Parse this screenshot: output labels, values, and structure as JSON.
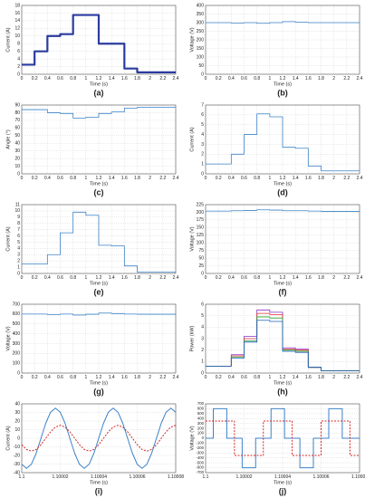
{
  "chart_data": [
    {
      "type": "line",
      "caption": "(a)",
      "xlabel": "Time (s)",
      "ylabel": "Current (A)",
      "grid": true,
      "xlim": [
        0,
        2.4
      ],
      "xticks": [
        0,
        0.2,
        0.4,
        0.6,
        0.8,
        1,
        1.2,
        1.4,
        1.6,
        1.8,
        2,
        2.2,
        2.4
      ],
      "ylim": [
        0,
        18
      ],
      "yticks": [
        0,
        2,
        4,
        6,
        8,
        10,
        12,
        14,
        16,
        18
      ],
      "x": [
        0,
        0.2,
        0.2,
        0.4,
        0.4,
        0.6,
        0.6,
        0.8,
        0.8,
        1,
        1,
        1.2,
        1.2,
        1.4,
        1.4,
        1.6,
        1.6,
        1.8,
        1.8,
        2.4
      ],
      "series": [
        {
          "color": "#2b3b9e",
          "width": 2.2,
          "values": [
            2.5,
            2.5,
            6,
            6,
            10,
            10,
            10.5,
            10.5,
            15.5,
            15.5,
            15.5,
            15.5,
            8,
            8,
            8,
            8,
            1.5,
            1.5,
            0.5,
            0.5
          ]
        }
      ]
    },
    {
      "type": "line",
      "caption": "(b)",
      "xlabel": "Time (s)",
      "ylabel": "Voltage (V)",
      "grid": true,
      "xlim": [
        0,
        2.4
      ],
      "xticks": [
        0,
        0.2,
        0.4,
        0.6,
        0.8,
        1,
        1.2,
        1.4,
        1.6,
        1.8,
        2,
        2.2,
        2.4
      ],
      "ylim": [
        0,
        400
      ],
      "yticks": [
        0,
        50,
        100,
        150,
        200,
        250,
        300,
        350,
        400
      ],
      "x": [
        0,
        0.2,
        0.2,
        0.4,
        0.4,
        0.6,
        0.6,
        0.8,
        0.8,
        1,
        1,
        1.2,
        1.2,
        1.4,
        1.4,
        1.6,
        1.6,
        1.8,
        1.8,
        2.4
      ],
      "series": [
        {
          "color": "#3b82c8",
          "width": 0.8,
          "values": [
            300,
            300,
            300,
            300,
            298,
            298,
            300,
            300,
            296,
            296,
            300,
            300,
            306,
            306,
            302,
            302,
            300,
            300,
            300,
            300
          ]
        }
      ]
    },
    {
      "type": "line",
      "caption": "(c)",
      "xlabel": "Time (s)",
      "ylabel": "Angle (°)",
      "grid": true,
      "xlim": [
        0,
        2.4
      ],
      "xticks": [
        0,
        0.2,
        0.4,
        0.6,
        0.8,
        1,
        1.2,
        1.4,
        1.6,
        1.8,
        2,
        2.2,
        2.4
      ],
      "ylim": [
        0,
        90
      ],
      "yticks": [
        0,
        10,
        20,
        30,
        40,
        50,
        60,
        70,
        80,
        90
      ],
      "x": [
        0,
        0.2,
        0.2,
        0.4,
        0.4,
        0.6,
        0.6,
        0.8,
        0.8,
        1,
        1,
        1.2,
        1.2,
        1.4,
        1.4,
        1.6,
        1.6,
        1.8,
        1.8,
        2.4
      ],
      "series": [
        {
          "color": "#3b82c8",
          "width": 0.8,
          "values": [
            84,
            84,
            84,
            84,
            80,
            80,
            79,
            79,
            73,
            73,
            74,
            74,
            79,
            79,
            81,
            81,
            86,
            86,
            87,
            87
          ]
        }
      ]
    },
    {
      "type": "line",
      "caption": "(d)",
      "xlabel": "Time (s)",
      "ylabel": "Current (A)",
      "grid": true,
      "xlim": [
        0,
        2.4
      ],
      "xticks": [
        0,
        0.2,
        0.4,
        0.6,
        0.8,
        1,
        1.2,
        1.4,
        1.6,
        1.8,
        2,
        2.2,
        2.4
      ],
      "ylim": [
        0,
        7
      ],
      "yticks": [
        0,
        1,
        2,
        3,
        4,
        5,
        6,
        7
      ],
      "x": [
        0,
        0.2,
        0.2,
        0.4,
        0.4,
        0.6,
        0.6,
        0.8,
        0.8,
        1,
        1,
        1.2,
        1.2,
        1.4,
        1.4,
        1.6,
        1.6,
        1.8,
        1.8,
        2.4
      ],
      "series": [
        {
          "color": "#3b82c8",
          "width": 0.8,
          "values": [
            1,
            1,
            1,
            1,
            2,
            2,
            4,
            4,
            6.1,
            6.1,
            5.8,
            5.8,
            2.7,
            2.7,
            2.6,
            2.6,
            0.8,
            0.8,
            0.3,
            0.3
          ]
        }
      ]
    },
    {
      "type": "line",
      "caption": "(e)",
      "xlabel": "Time (s)",
      "ylabel": "Current (A)",
      "grid": true,
      "xlim": [
        0,
        2.4
      ],
      "xticks": [
        0,
        0.2,
        0.4,
        0.6,
        0.8,
        1,
        1.2,
        1.4,
        1.6,
        1.8,
        2,
        2.2,
        2.4
      ],
      "ylim": [
        0,
        11
      ],
      "yticks": [
        0,
        1,
        2,
        3,
        4,
        5,
        6,
        7,
        8,
        9,
        10,
        11
      ],
      "x": [
        0,
        0.2,
        0.2,
        0.4,
        0.4,
        0.6,
        0.6,
        0.8,
        0.8,
        1,
        1,
        1.2,
        1.2,
        1.4,
        1.4,
        1.6,
        1.6,
        1.8,
        1.8,
        2.4
      ],
      "series": [
        {
          "color": "#3b82c8",
          "width": 0.8,
          "values": [
            1.5,
            1.5,
            1.5,
            1.5,
            3,
            3,
            6.5,
            6.5,
            9.8,
            9.8,
            9.3,
            9.3,
            4.5,
            4.5,
            4.4,
            4.4,
            1.2,
            1.2,
            0.2,
            0.2
          ]
        }
      ]
    },
    {
      "type": "line",
      "caption": "(f)",
      "xlabel": "Time (s)",
      "ylabel": "Voltage (V)",
      "grid": true,
      "xlim": [
        0,
        2.4
      ],
      "xticks": [
        0,
        0.2,
        0.4,
        0.6,
        0.8,
        1,
        1.2,
        1.4,
        1.6,
        1.8,
        2,
        2.2,
        2.4
      ],
      "ylim": [
        0,
        225
      ],
      "yticks": [
        0,
        25,
        50,
        75,
        100,
        125,
        150,
        175,
        200,
        225
      ],
      "x": [
        0,
        0.2,
        0.2,
        0.4,
        0.4,
        0.6,
        0.6,
        0.8,
        0.8,
        1,
        1,
        1.2,
        1.2,
        1.4,
        1.4,
        1.6,
        1.6,
        1.8,
        1.8,
        2.4
      ],
      "series": [
        {
          "color": "#3b82c8",
          "width": 0.8,
          "values": [
            204,
            204,
            204,
            204,
            205,
            205,
            206,
            206,
            208,
            208,
            207,
            207,
            205,
            205,
            205,
            205,
            204,
            204,
            203,
            203
          ]
        }
      ]
    },
    {
      "type": "line",
      "caption": "(g)",
      "xlabel": "Time (s)",
      "ylabel": "Voltage (V)",
      "grid": true,
      "xlim": [
        0,
        2.4
      ],
      "xticks": [
        0,
        0.2,
        0.4,
        0.6,
        0.8,
        1,
        1.2,
        1.4,
        1.6,
        1.8,
        2,
        2.2,
        2.4
      ],
      "ylim": [
        0,
        700
      ],
      "yticks": [
        0,
        100,
        200,
        300,
        400,
        500,
        600,
        700
      ],
      "x": [
        0,
        0.2,
        0.2,
        0.4,
        0.4,
        0.6,
        0.6,
        0.8,
        0.8,
        1,
        1,
        1.2,
        1.2,
        1.4,
        1.4,
        1.6,
        1.6,
        1.8,
        1.8,
        2.4
      ],
      "series": [
        {
          "color": "#3b82c8",
          "width": 0.8,
          "values": [
            600,
            600,
            600,
            600,
            595,
            595,
            600,
            600,
            590,
            590,
            598,
            598,
            610,
            610,
            605,
            605,
            600,
            600,
            598,
            598
          ]
        }
      ]
    },
    {
      "type": "line",
      "caption": "(h)",
      "xlabel": "Time (s)",
      "ylabel": "Power (kW)",
      "grid": true,
      "xlim": [
        0,
        2.4
      ],
      "xticks": [
        0,
        0.2,
        0.4,
        0.6,
        0.8,
        1,
        1.2,
        1.4,
        1.6,
        1.8,
        2,
        2.2,
        2.4
      ],
      "ylim": [
        0,
        6
      ],
      "yticks": [
        0,
        1,
        2,
        3,
        4,
        5,
        6
      ],
      "x": [
        0,
        0.2,
        0.2,
        0.4,
        0.4,
        0.6,
        0.6,
        0.8,
        0.8,
        1,
        1,
        1.2,
        1.2,
        1.4,
        1.4,
        1.6,
        1.6,
        1.8,
        1.8,
        2.4
      ],
      "series": [
        {
          "color": "#8b2fc9",
          "width": 0.8,
          "values": [
            0.6,
            0.6,
            0.6,
            0.6,
            1.6,
            1.6,
            3.2,
            3.2,
            5.5,
            5.5,
            5.3,
            5.3,
            2.2,
            2.2,
            2.1,
            2.1,
            0.5,
            0.5,
            0.2,
            0.2
          ]
        },
        {
          "color": "#e03030",
          "width": 0.8,
          "values": [
            0.6,
            0.6,
            0.6,
            0.6,
            1.5,
            1.5,
            3,
            3,
            5.2,
            5.2,
            5.1,
            5.1,
            2.1,
            2.1,
            2,
            2,
            0.5,
            0.5,
            0.2,
            0.2
          ]
        },
        {
          "color": "#2ca02c",
          "width": 0.8,
          "values": [
            0.6,
            0.6,
            0.6,
            0.6,
            1.4,
            1.4,
            2.8,
            2.8,
            4.9,
            4.9,
            4.8,
            4.8,
            2,
            2,
            1.9,
            1.9,
            0.5,
            0.5,
            0.2,
            0.2
          ]
        },
        {
          "color": "#1f5fbf",
          "width": 0.8,
          "values": [
            0.6,
            0.6,
            0.6,
            0.6,
            1.3,
            1.3,
            2.7,
            2.7,
            4.6,
            4.6,
            4.5,
            4.5,
            1.9,
            1.9,
            1.8,
            1.8,
            0.5,
            0.5,
            0.2,
            0.2
          ]
        }
      ]
    },
    {
      "type": "line",
      "caption": "(i)",
      "xlabel": "Time (s)",
      "ylabel": "Current (A)",
      "grid": true,
      "xlim": [
        1.1,
        1.10008
      ],
      "xticks": [
        1.1,
        1.10002,
        1.10004,
        1.10006,
        1.10008
      ],
      "ylim": [
        -40,
        40
      ],
      "yticks": [
        -40,
        -30,
        -20,
        -10,
        0,
        10,
        20,
        30,
        40
      ],
      "x": [
        1.1,
        1.1000025,
        1.100005,
        1.1000075,
        1.10001,
        1.1000125,
        1.100015,
        1.1000175,
        1.10002,
        1.1000225,
        1.100025,
        1.1000275,
        1.10003,
        1.1000325,
        1.100035,
        1.1000375,
        1.10004,
        1.1000425,
        1.100045,
        1.1000475,
        1.10005,
        1.1000525,
        1.100055,
        1.1000575,
        1.10006,
        1.1000625,
        1.100065,
        1.1000675,
        1.10007,
        1.1000725,
        1.100075,
        1.1000775,
        1.10008
      ],
      "series": [
        {
          "color": "#3b82c8",
          "width": 1,
          "values": [
            -30.3,
            -35,
            -30.3,
            -17.5,
            0,
            17.5,
            30.3,
            35,
            30.3,
            17.5,
            0,
            -17.5,
            -30.3,
            -35,
            -30.3,
            -17.5,
            0,
            17.5,
            30.3,
            35,
            30.3,
            17.5,
            0,
            -17.5,
            -30.3,
            -35,
            -30.3,
            -17.5,
            0,
            17.5,
            30.3,
            35,
            30.3
          ]
        },
        {
          "color": "#d62728",
          "width": 1,
          "dashed": true,
          "values": [
            -7.5,
            -13,
            -15,
            -13,
            -7.5,
            0,
            7.5,
            13,
            15,
            13,
            7.5,
            0,
            -7.5,
            -13,
            -15,
            -13,
            -7.5,
            0,
            7.5,
            13,
            15,
            13,
            7.5,
            0,
            -7.5,
            -13,
            -15,
            -13,
            -7.5,
            0,
            7.5,
            13,
            15
          ]
        }
      ]
    },
    {
      "type": "line",
      "caption": "(j)",
      "xlabel": "Time (s)",
      "ylabel": "Voltage (V)",
      "grid": true,
      "xlim": [
        1.1,
        1.10008
      ],
      "xticks": [
        1.1,
        1.10002,
        1.10004,
        1.10006,
        1.10008
      ],
      "ylim": [
        -700,
        700
      ],
      "yticks": [
        -700,
        -600,
        -500,
        -400,
        -300,
        -200,
        -100,
        0,
        100,
        200,
        300,
        400,
        500,
        600,
        700
      ],
      "x": [
        1.1,
        1.100004,
        1.100004,
        1.100011,
        1.100011,
        1.100015,
        1.100015,
        1.100019,
        1.100019,
        1.100026,
        1.100026,
        1.10003,
        1.10003,
        1.100034,
        1.100034,
        1.100041,
        1.100041,
        1.100045,
        1.100045,
        1.100049,
        1.100049,
        1.100056,
        1.100056,
        1.10006,
        1.10006,
        1.100064,
        1.100064,
        1.100071,
        1.100071,
        1.100075,
        1.100075,
        1.10008
      ],
      "series": [
        {
          "color": "#3b82c8",
          "width": 1,
          "values": [
            0,
            0,
            600,
            600,
            0,
            0,
            0,
            0,
            -600,
            -600,
            0,
            0,
            0,
            0,
            600,
            600,
            0,
            0,
            0,
            0,
            -600,
            -600,
            0,
            0,
            0,
            0,
            600,
            600,
            0,
            0,
            0,
            0
          ]
        },
        {
          "color": "#d62728",
          "width": 1,
          "dashed": true,
          "values": [
            350,
            350,
            350,
            350,
            350,
            350,
            -350,
            -350,
            -350,
            -350,
            -350,
            -350,
            350,
            350,
            350,
            350,
            350,
            350,
            -350,
            -350,
            -350,
            -350,
            -350,
            -350,
            350,
            350,
            350,
            350,
            350,
            350,
            -350,
            -350
          ]
        }
      ]
    }
  ]
}
